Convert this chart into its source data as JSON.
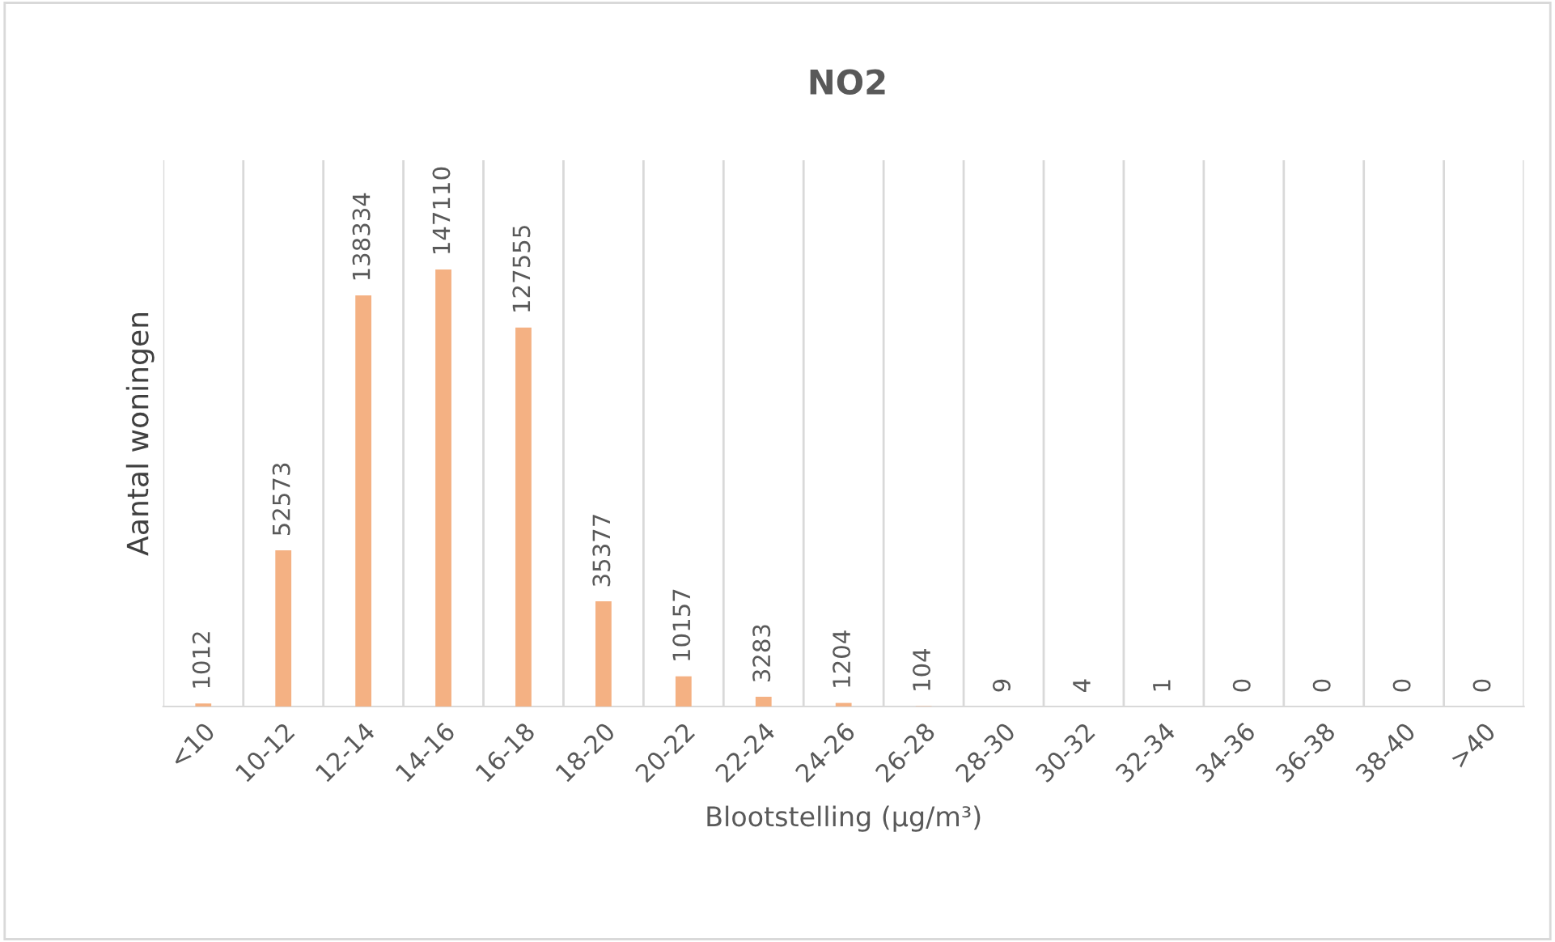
{
  "chart_data": {
    "type": "bar",
    "title": "NO2",
    "xlabel": "Blootstelling (µg/m³)",
    "ylabel": "Aantal woningen",
    "categories": [
      "<10",
      "10-12",
      "12-14",
      "14-16",
      "16-18",
      "18-20",
      "20-22",
      "22-24",
      "24-26",
      "26-28",
      "28-30",
      "30-32",
      "32-34",
      "34-36",
      "36-38",
      "38-40",
      ">40"
    ],
    "values": [
      1012,
      52573,
      138334,
      147110,
      127555,
      35377,
      10157,
      3283,
      1204,
      104,
      9,
      4,
      1,
      0,
      0,
      0,
      0
    ],
    "color": "#f4b183",
    "data_labels": true,
    "grid": "x",
    "legend": false
  }
}
